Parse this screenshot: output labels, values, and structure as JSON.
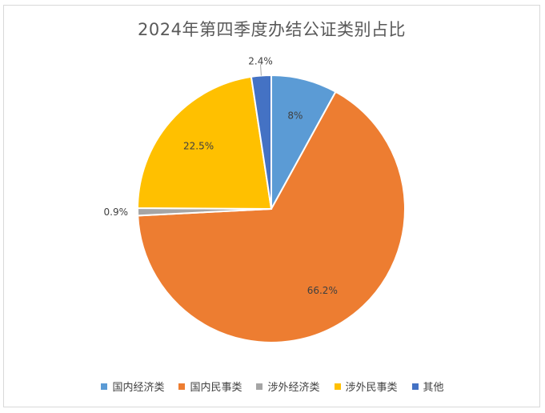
{
  "chart_data": {
    "type": "pie",
    "title": "2024年第四季度办结公证类别占比",
    "categories": [
      "国内经济类",
      "国内民事类",
      "涉外经济类",
      "涉外民事类",
      "其他"
    ],
    "values": [
      8.0,
      66.2,
      0.9,
      22.5,
      2.4
    ],
    "data_labels": [
      "8%",
      "66.2%",
      "0.9%",
      "22.5%",
      "2.4%"
    ],
    "colors": [
      "#5b9bd5",
      "#ed7d31",
      "#a5a5a5",
      "#ffc000",
      "#4472c4"
    ],
    "legend_position": "bottom"
  }
}
